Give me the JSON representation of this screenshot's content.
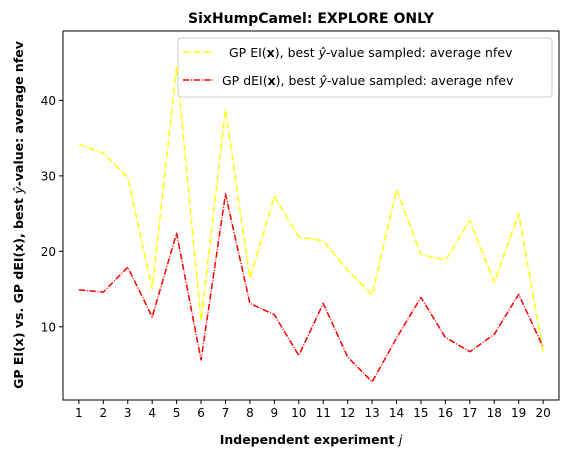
{
  "chart_data": {
    "type": "line",
    "title": "SixHumpCamel: EXPLORE ONLY",
    "xlabel": "Independent experiment j",
    "ylabel": "GP EI(x) vs. GP dEI(x), best ŷ-value: average nfev",
    "xlim": [
      0.35,
      20.65
    ],
    "ylim": [
      0.3,
      49.2
    ],
    "x": [
      1,
      2,
      3,
      4,
      5,
      6,
      7,
      8,
      9,
      10,
      11,
      12,
      13,
      14,
      15,
      16,
      17,
      18,
      19,
      20
    ],
    "yticks": [
      10,
      20,
      30,
      40
    ],
    "grid": false,
    "legend_position": "top-right",
    "series": [
      {
        "name": "GP EI(x), best ŷ-value sampled: average nfev",
        "color": "#ffff00",
        "linestyle": "dashdot",
        "values": [
          34.2,
          33.0,
          29.8,
          15.0,
          44.5,
          10.8,
          38.8,
          16.4,
          27.3,
          21.9,
          21.4,
          17.5,
          14.2,
          28.2,
          19.6,
          18.8,
          24.1,
          15.9,
          25.0,
          6.7
        ]
      },
      {
        "name": "GP dEI(x), best ŷ-value sampled: average nfev",
        "color": "#ff0000",
        "linestyle": "dashdot",
        "values": [
          14.9,
          14.6,
          17.9,
          11.3,
          22.4,
          5.6,
          27.6,
          13.1,
          11.6,
          6.2,
          13.1,
          6.0,
          2.7,
          8.5,
          13.9,
          8.6,
          6.7,
          9.0,
          14.3,
          7.3
        ]
      }
    ]
  }
}
